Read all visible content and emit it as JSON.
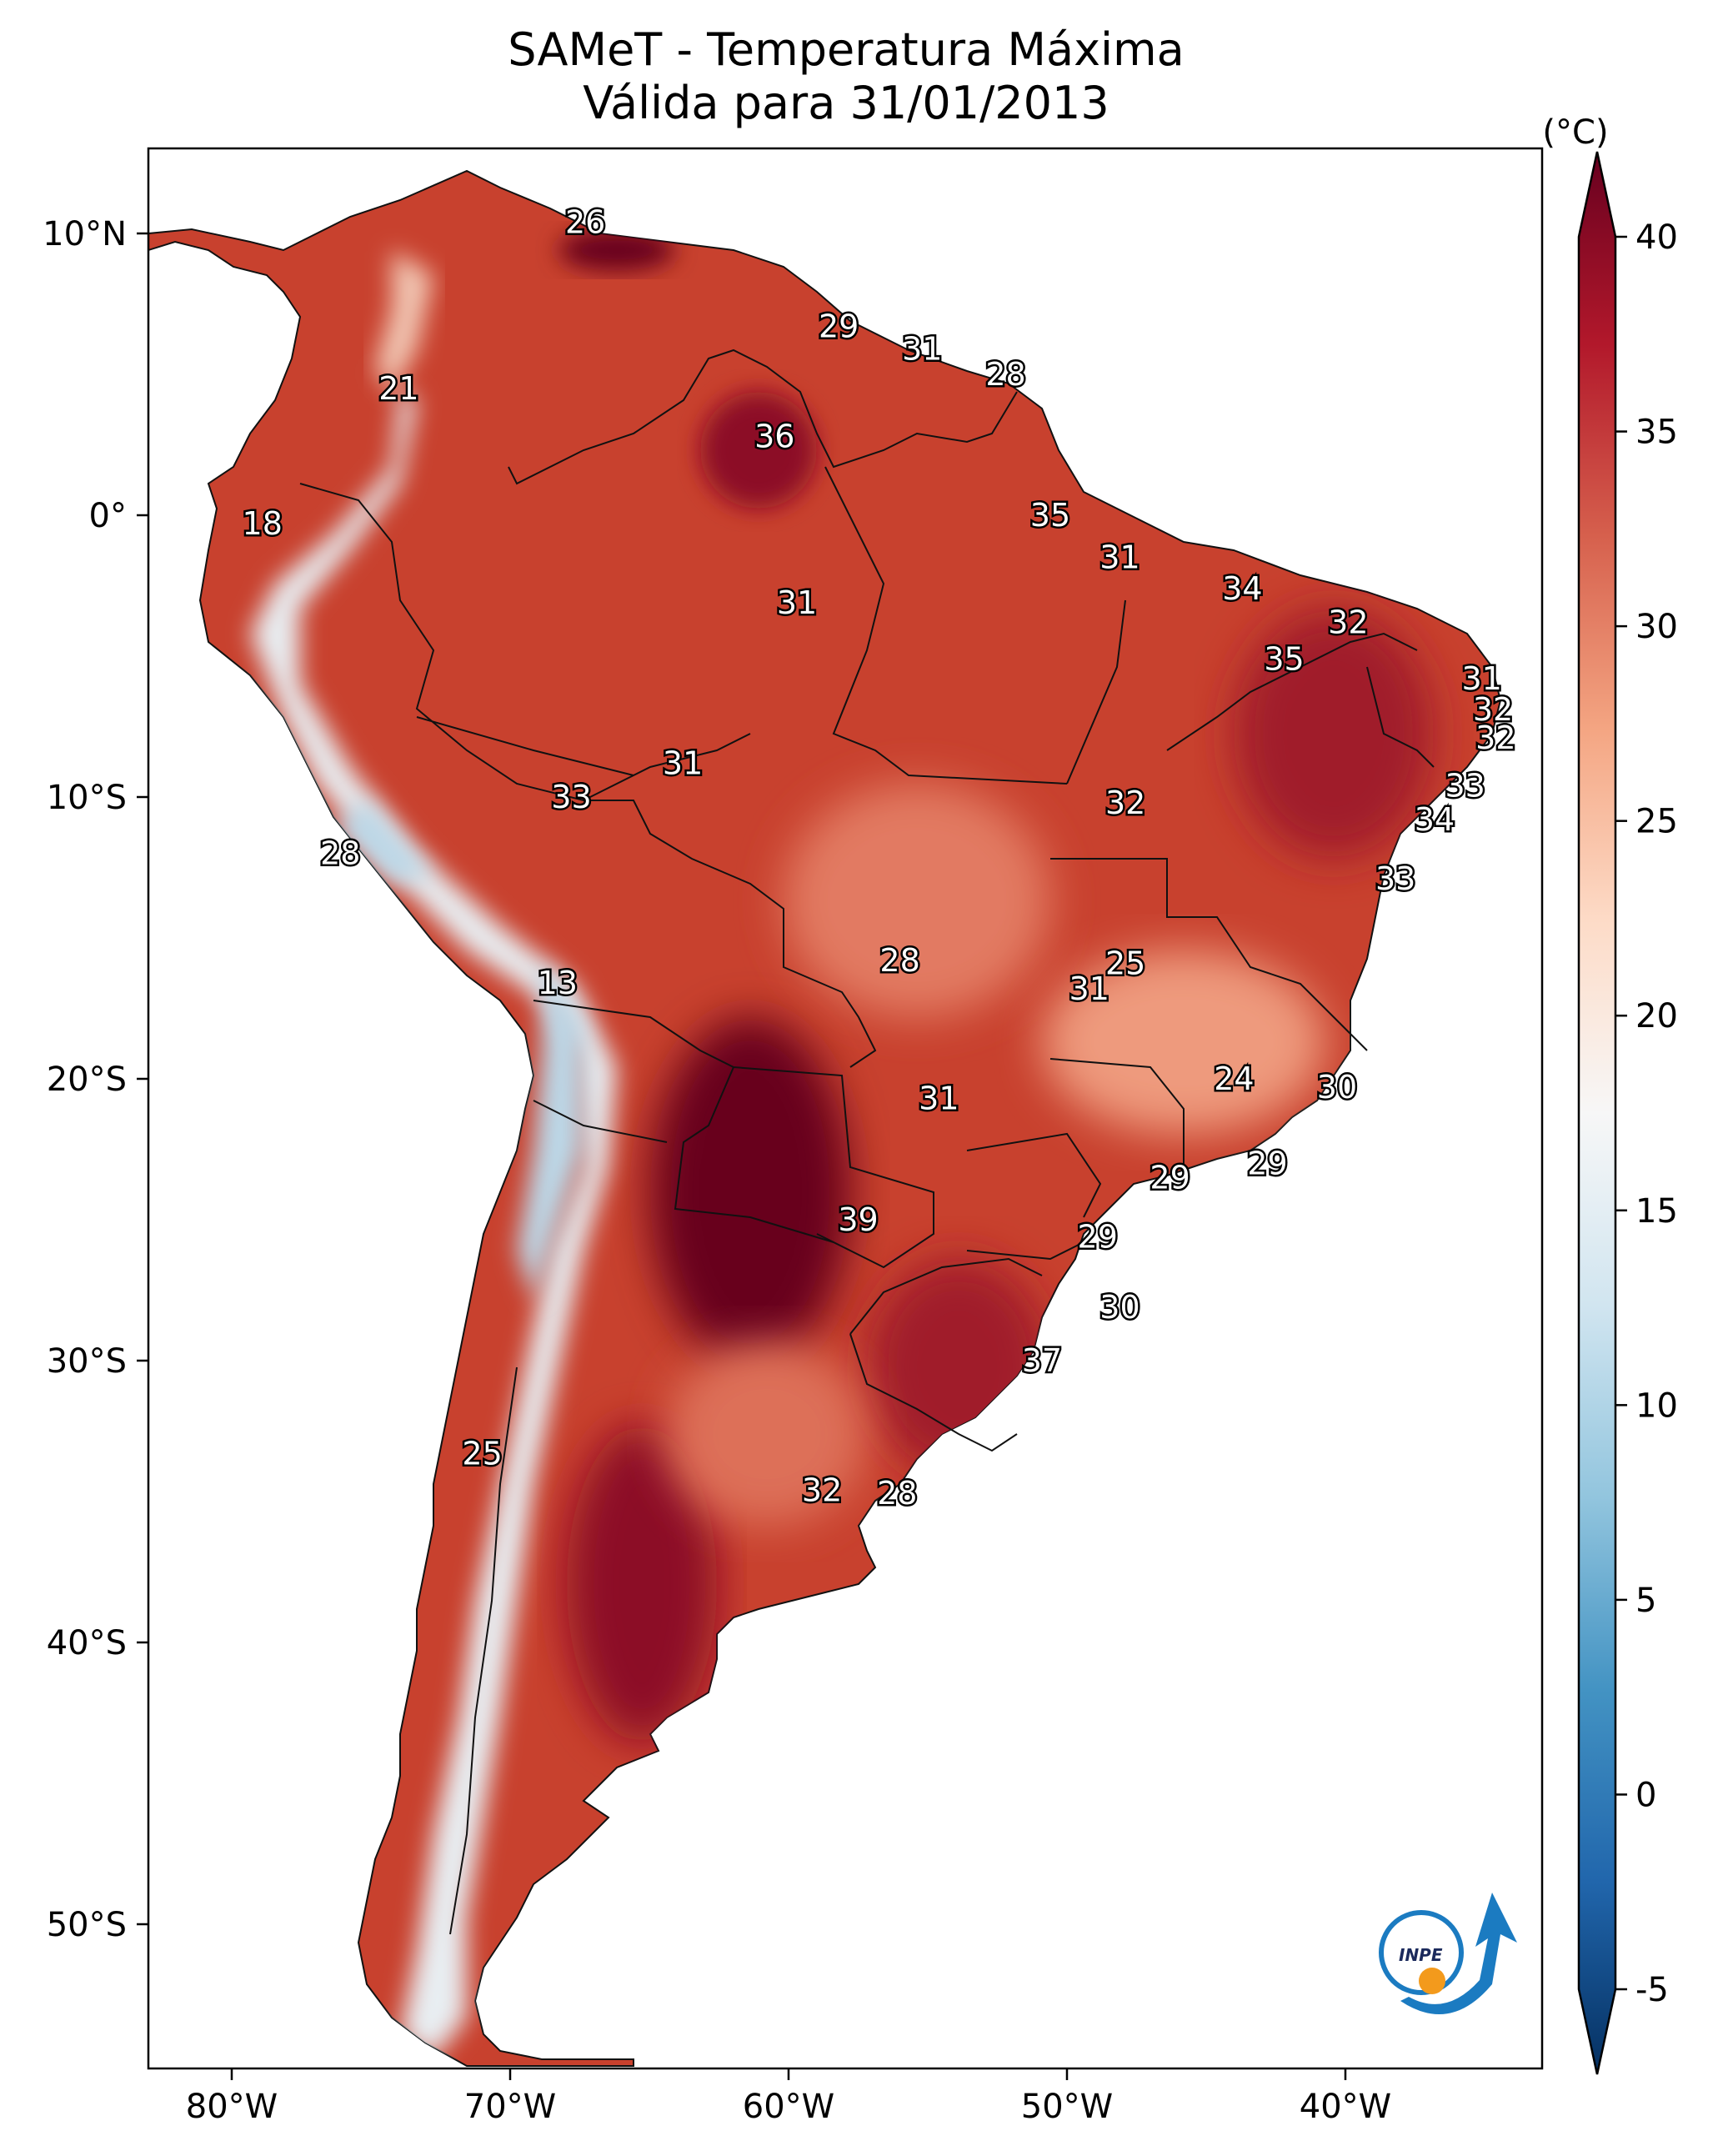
{
  "title": {
    "line1": "SAMeT - Temperatura Máxima",
    "line2": "Válida para 31/01/2013"
  },
  "colorbar": {
    "unit": "(°C)",
    "ticks": [
      "-5",
      "0",
      "5",
      "10",
      "15",
      "20",
      "25",
      "30",
      "35",
      "40"
    ],
    "range": [
      -5,
      40
    ],
    "colors": [
      "#053061",
      "#2166ac",
      "#4393c3",
      "#92c5de",
      "#d1e5f0",
      "#f7f7f7",
      "#fddbc7",
      "#f4a582",
      "#d6604d",
      "#b2182b",
      "#67001f"
    ]
  },
  "axes": {
    "lon_ticks": [
      "80°W",
      "70°W",
      "60°W",
      "50°W",
      "40°W"
    ],
    "lat_ticks": [
      "10°N",
      "0°",
      "10°S",
      "20°S",
      "30°S",
      "40°S",
      "50°S"
    ]
  },
  "map_labels": [
    {
      "text": "26",
      "lon": -67.3,
      "lat": 10.4
    },
    {
      "text": "21",
      "lon": -74.0,
      "lat": 4.5
    },
    {
      "text": "29",
      "lon": -58.2,
      "lat": 6.7
    },
    {
      "text": "31",
      "lon": -55.2,
      "lat": 5.9
    },
    {
      "text": "28",
      "lon": -52.2,
      "lat": 5.0
    },
    {
      "text": "36",
      "lon": -60.5,
      "lat": 2.8
    },
    {
      "text": "18",
      "lon": -78.9,
      "lat": -0.3
    },
    {
      "text": "35",
      "lon": -50.6,
      "lat": 0.0
    },
    {
      "text": "31",
      "lon": -48.1,
      "lat": -1.5
    },
    {
      "text": "34",
      "lon": -43.7,
      "lat": -2.6
    },
    {
      "text": "31",
      "lon": -59.7,
      "lat": -3.1
    },
    {
      "text": "32",
      "lon": -39.9,
      "lat": -3.8
    },
    {
      "text": "35",
      "lon": -42.2,
      "lat": -5.1
    },
    {
      "text": "31",
      "lon": -35.1,
      "lat": -5.8
    },
    {
      "text": "32",
      "lon": -34.7,
      "lat": -6.9
    },
    {
      "text": "32",
      "lon": -34.6,
      "lat": -7.9
    },
    {
      "text": "31",
      "lon": -63.8,
      "lat": -8.8
    },
    {
      "text": "33",
      "lon": -35.7,
      "lat": -9.6
    },
    {
      "text": "33",
      "lon": -67.8,
      "lat": -10.0
    },
    {
      "text": "32",
      "lon": -47.9,
      "lat": -10.2
    },
    {
      "text": "34",
      "lon": -36.8,
      "lat": -10.8
    },
    {
      "text": "28",
      "lon": -76.1,
      "lat": -12.0
    },
    {
      "text": "33",
      "lon": -38.2,
      "lat": -12.9
    },
    {
      "text": "28",
      "lon": -56.0,
      "lat": -15.8
    },
    {
      "text": "25",
      "lon": -47.9,
      "lat": -15.9
    },
    {
      "text": "31",
      "lon": -49.2,
      "lat": -16.8
    },
    {
      "text": "13",
      "lon": -68.3,
      "lat": -16.6
    },
    {
      "text": "24",
      "lon": -44.0,
      "lat": -20.0
    },
    {
      "text": "30",
      "lon": -40.3,
      "lat": -20.3
    },
    {
      "text": "31",
      "lon": -54.6,
      "lat": -20.7
    },
    {
      "text": "29",
      "lon": -42.8,
      "lat": -23.0
    },
    {
      "text": "29",
      "lon": -46.3,
      "lat": -23.5
    },
    {
      "text": "39",
      "lon": -57.5,
      "lat": -25.0
    },
    {
      "text": "29",
      "lon": -48.9,
      "lat": -25.6
    },
    {
      "text": "30",
      "lon": -48.1,
      "lat": -28.1
    },
    {
      "text": "37",
      "lon": -50.9,
      "lat": -30.0
    },
    {
      "text": "25",
      "lon": -71.0,
      "lat": -33.3
    },
    {
      "text": "32",
      "lon": -58.8,
      "lat": -34.6
    },
    {
      "text": "28",
      "lon": -56.1,
      "lat": -34.7
    }
  ],
  "logo": {
    "text": "INPE"
  }
}
